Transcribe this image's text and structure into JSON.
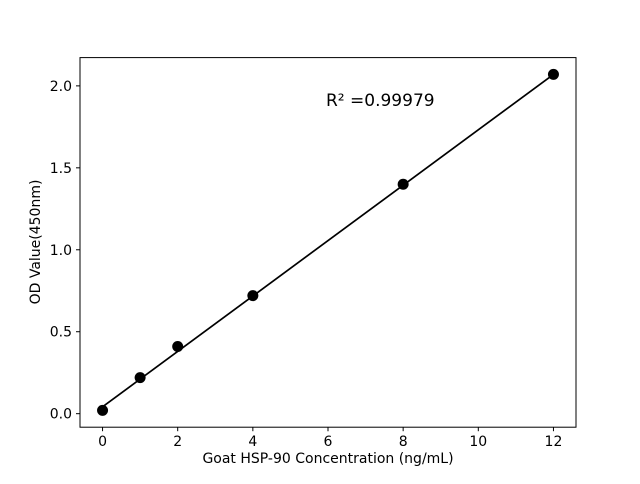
{
  "chart_data": {
    "type": "scatter",
    "title": "",
    "xlabel": "Goat HSP-90 Concentration (ng/mL)",
    "ylabel": "OD Value(450nm)",
    "annotation": "R² =0.99979",
    "x": [
      0,
      1,
      2,
      4,
      8,
      12
    ],
    "y": [
      0.02,
      0.22,
      0.41,
      0.72,
      1.4,
      2.07
    ],
    "fit_line": {
      "slope": 0.169,
      "intercept": 0.042,
      "x_start": 0,
      "x_end": 12,
      "r_squared": 0.99979
    },
    "xlim": [
      -0.6,
      12.6
    ],
    "ylim": [
      -0.0825,
      2.1725
    ],
    "x_tick_values": [
      0,
      2,
      4,
      6,
      8,
      10,
      12
    ],
    "x_tick_labels": [
      "0",
      "2",
      "4",
      "6",
      "8",
      "10",
      "12"
    ],
    "y_tick_values": [
      0,
      0.5,
      1.0,
      1.5,
      2.0
    ],
    "y_tick_labels": [
      "0.0",
      "0.5",
      "1.0",
      "1.5",
      "2.0"
    ],
    "grid": false,
    "legend": "none",
    "marker": {
      "shape": "circle",
      "color": "#000000",
      "radius_px": 5.5
    },
    "line_color": "#000000",
    "spine_color": "#000000",
    "background": "#ffffff",
    "text_color": "#000000"
  }
}
